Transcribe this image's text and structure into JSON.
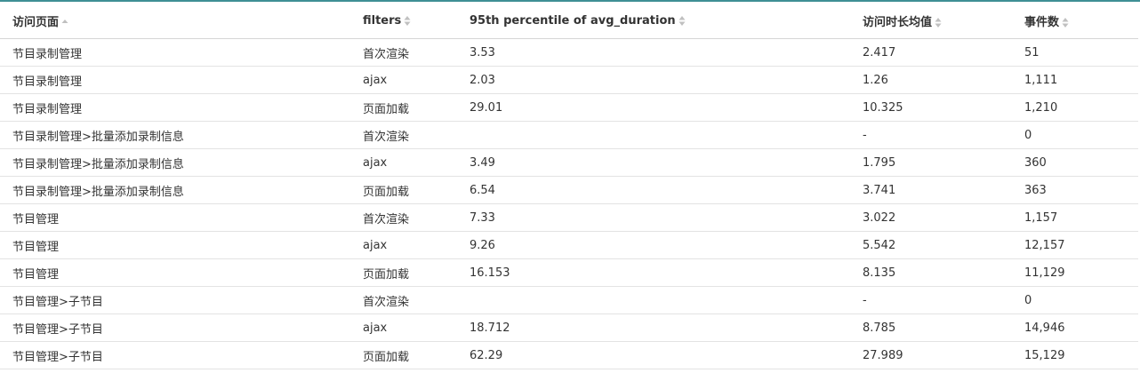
{
  "colors": {
    "top_rule": "#3f8f95",
    "sort_icon": "#c0c0c0",
    "text": "#333333",
    "row_border": "#e3e3e3"
  },
  "table": {
    "headers": {
      "page": "访问页面",
      "filters": "filters",
      "p95": "95th percentile of avg_duration",
      "avg": "访问时长均值",
      "count": "事件数"
    },
    "rows": [
      {
        "page": "节目录制管理",
        "filter": "首次渲染",
        "p95": "3.53",
        "avg": "2.417",
        "count": "51"
      },
      {
        "page": "节目录制管理",
        "filter": "ajax",
        "p95": "2.03",
        "avg": "1.26",
        "count": "1,111"
      },
      {
        "page": "节目录制管理",
        "filter": "页面加载",
        "p95": "29.01",
        "avg": "10.325",
        "count": "1,210"
      },
      {
        "page": "节目录制管理>批量添加录制信息",
        "filter": "首次渲染",
        "p95": "",
        "avg": "-",
        "count": "0"
      },
      {
        "page": "节目录制管理>批量添加录制信息",
        "filter": "ajax",
        "p95": "3.49",
        "avg": "1.795",
        "count": "360"
      },
      {
        "page": "节目录制管理>批量添加录制信息",
        "filter": "页面加载",
        "p95": "6.54",
        "avg": "3.741",
        "count": "363"
      },
      {
        "page": "节目管理",
        "filter": "首次渲染",
        "p95": "7.33",
        "avg": "3.022",
        "count": "1,157"
      },
      {
        "page": "节目管理",
        "filter": "ajax",
        "p95": "9.26",
        "avg": "5.542",
        "count": "12,157"
      },
      {
        "page": "节目管理",
        "filter": "页面加载",
        "p95": "16.153",
        "avg": "8.135",
        "count": "11,129"
      },
      {
        "page": "节目管理>子节目",
        "filter": "首次渲染",
        "p95": "",
        "avg": "-",
        "count": "0"
      },
      {
        "page": "节目管理>子节目",
        "filter": "ajax",
        "p95": "18.712",
        "avg": "8.785",
        "count": "14,946"
      },
      {
        "page": "节目管理>子节目",
        "filter": "页面加载",
        "p95": "62.29",
        "avg": "27.989",
        "count": "15,129"
      }
    ]
  }
}
